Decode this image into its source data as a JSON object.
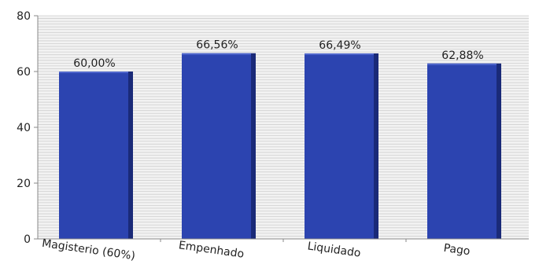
{
  "chart_data": {
    "type": "bar",
    "categories": [
      "Magisterio (60%)",
      "Empenhado",
      "Liquidado",
      "Pago"
    ],
    "values": [
      60.0,
      66.56,
      66.49,
      62.88
    ],
    "data_labels": [
      "60,00%",
      "66,56%",
      "66,49%",
      "62,88%"
    ],
    "yticks": [
      0,
      20,
      40,
      60,
      80
    ],
    "ylim": [
      0,
      80
    ],
    "title": "",
    "xlabel": "",
    "ylabel": "",
    "grid": true,
    "colors": {
      "bar_front": "#2c44b0",
      "bar_side": "#1a2a78",
      "bar_top": "#4f66cc",
      "grid": "#cfcfcf",
      "background": "#f2f2f2",
      "axis": "#888888"
    }
  }
}
